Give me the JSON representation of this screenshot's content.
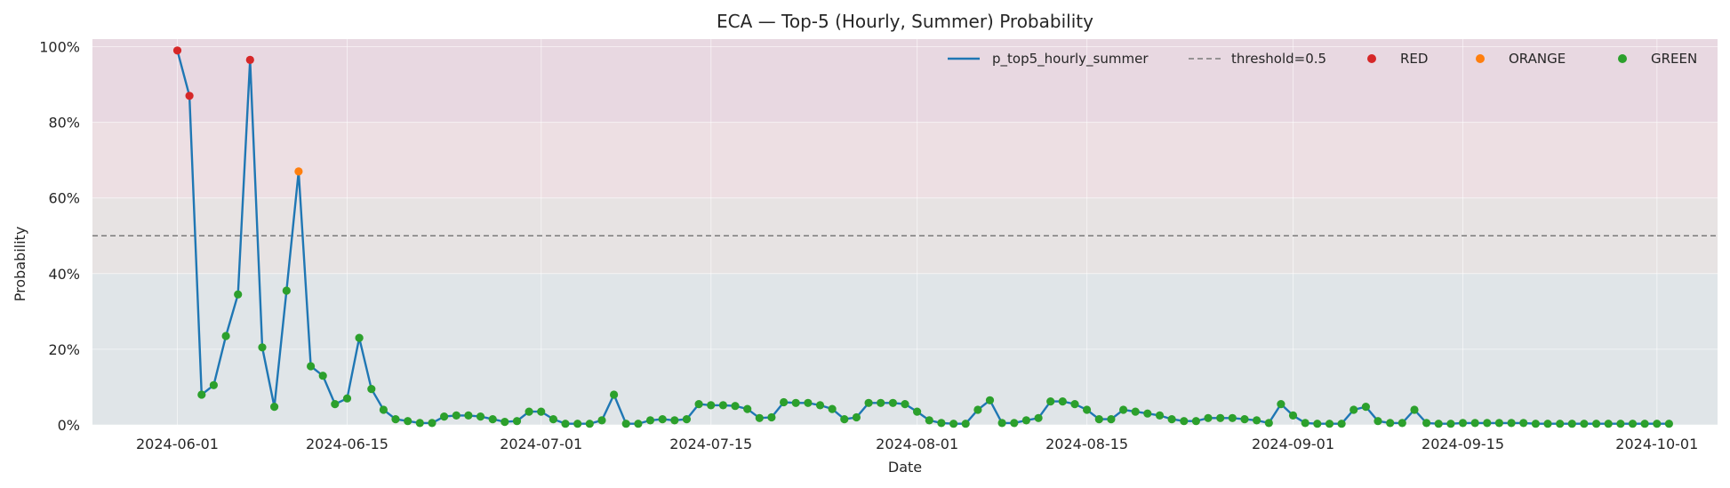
{
  "chart_data": {
    "type": "line",
    "title": "ECA — Top-5 (Hourly, Summer) Probability",
    "xlabel": "Date",
    "ylabel": "Probability",
    "x_start": "2024-06-01",
    "x_end": "2024-09-30",
    "xlim": [
      "2024-05-25",
      "2024-10-06"
    ],
    "ylim": [
      0,
      1.02
    ],
    "x_ticks": [
      "2024-06-01",
      "2024-06-15",
      "2024-07-01",
      "2024-07-15",
      "2024-08-01",
      "2024-08-15",
      "2024-09-01",
      "2024-09-15",
      "2024-10-01"
    ],
    "y_ticks": [
      0,
      0.2,
      0.4,
      0.6,
      0.8,
      1.0
    ],
    "y_tick_labels": [
      "0%",
      "20%",
      "40%",
      "60%",
      "80%",
      "100%"
    ],
    "threshold": 0.5,
    "bands": [
      {
        "from": 0.8,
        "to": 1.02,
        "color": "#e8d8e1"
      },
      {
        "from": 0.6,
        "to": 0.8,
        "color": "#eddfe3"
      },
      {
        "from": 0.4,
        "to": 0.6,
        "color": "#e7e3e3"
      },
      {
        "from": 0.0,
        "to": 0.4,
        "color": "#e0e5e8"
      }
    ],
    "grid": true,
    "legend_position": "top-right",
    "legend": {
      "line_label": "p_top5_hourly_summer",
      "threshold_label": "threshold=0.5",
      "red_label": "RED",
      "orange_label": "ORANGE",
      "green_label": "GREEN"
    },
    "colors": {
      "line": "#1f77b4",
      "threshold": "#7a7a7a",
      "RED": "#d62728",
      "ORANGE": "#ff7f0e",
      "GREEN": "#2ca02c"
    },
    "cutoffs": {
      "RED": 0.8,
      "ORANGE": 0.6
    },
    "series": [
      {
        "name": "p_top5_hourly_summer",
        "values": [
          0.99,
          0.87,
          0.08,
          0.105,
          0.235,
          0.345,
          0.965,
          0.205,
          0.048,
          0.355,
          0.67,
          0.155,
          0.13,
          0.055,
          0.07,
          0.23,
          0.095,
          0.04,
          0.015,
          0.01,
          0.005,
          0.005,
          0.022,
          0.025,
          0.025,
          0.022,
          0.015,
          0.008,
          0.01,
          0.035,
          0.035,
          0.015,
          0.003,
          0.003,
          0.003,
          0.012,
          0.08,
          0.003,
          0.003,
          0.012,
          0.015,
          0.012,
          0.015,
          0.055,
          0.052,
          0.052,
          0.05,
          0.042,
          0.018,
          0.02,
          0.06,
          0.058,
          0.058,
          0.052,
          0.042,
          0.015,
          0.02,
          0.058,
          0.058,
          0.058,
          0.055,
          0.035,
          0.012,
          0.005,
          0.003,
          0.003,
          0.04,
          0.065,
          0.005,
          0.005,
          0.012,
          0.018,
          0.062,
          0.062,
          0.055,
          0.04,
          0.015,
          0.015,
          0.04,
          0.035,
          0.03,
          0.025,
          0.015,
          0.01,
          0.01,
          0.018,
          0.018,
          0.018,
          0.015,
          0.012,
          0.005,
          0.055,
          0.025,
          0.005,
          0.003,
          0.003,
          0.003,
          0.04,
          0.048,
          0.01,
          0.005,
          0.005,
          0.04,
          0.005,
          0.003,
          0.003,
          0.005,
          0.005,
          0.005,
          0.005,
          0.005,
          0.005,
          0.003,
          0.003,
          0.003,
          0.003,
          0.003,
          0.003,
          0.003,
          0.003,
          0.003,
          0.003,
          0.003,
          0.003
        ]
      }
    ]
  }
}
